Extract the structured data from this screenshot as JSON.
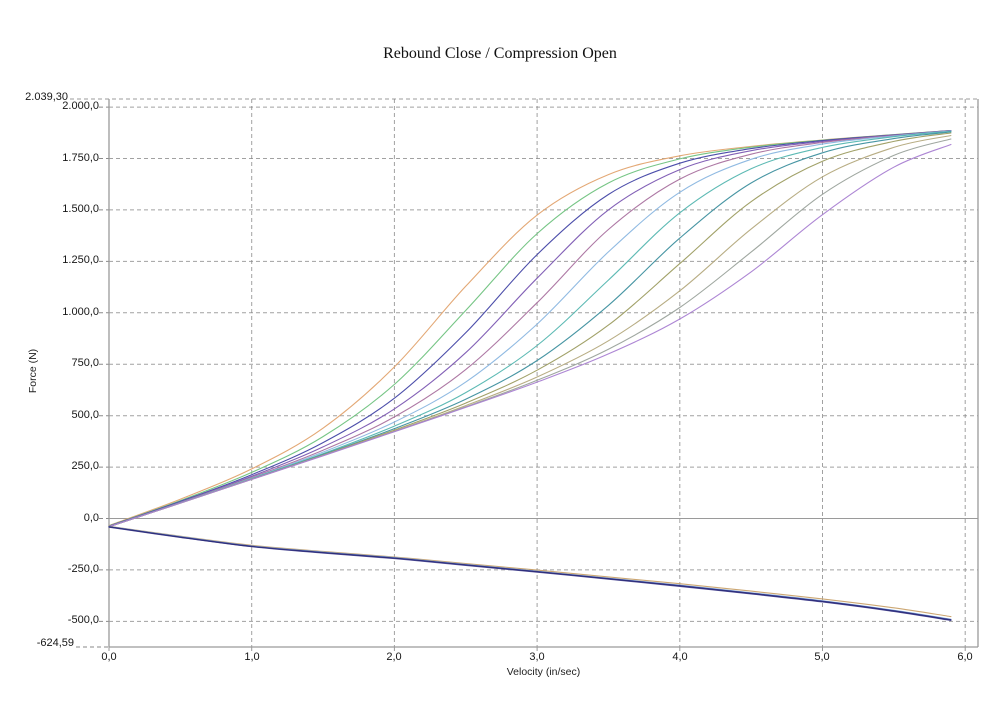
{
  "page": {
    "background": "#ffffff"
  },
  "colors": {
    "grid": "#8a8a8a",
    "axis": "#9a9a9a",
    "text": "#1c1c1c"
  },
  "chart_data": {
    "type": "line",
    "title": "Rebound Close / Compression Open",
    "xlabel": "Velocity (in/sec)",
    "ylabel": "Force (N)",
    "xlim": [
      0,
      6.09
    ],
    "ylim": [
      -624.59,
      2039.3
    ],
    "axis_max_label": "2.039,30",
    "axis_min_label": "-624,59",
    "grid": "dashed",
    "legend": "none",
    "x_ticks": [
      {
        "v": 0,
        "label": "0,0"
      },
      {
        "v": 1,
        "label": "1,0"
      },
      {
        "v": 2,
        "label": "2,0"
      },
      {
        "v": 3,
        "label": "3,0"
      },
      {
        "v": 4,
        "label": "4,0"
      },
      {
        "v": 5,
        "label": "5,0"
      },
      {
        "v": 6,
        "label": "6,0"
      }
    ],
    "y_ticks": [
      {
        "v": 2000,
        "label": "2.000,0"
      },
      {
        "v": 1750,
        "label": "1.750,0"
      },
      {
        "v": 1500,
        "label": "1.500,0"
      },
      {
        "v": 1250,
        "label": "1.250,0"
      },
      {
        "v": 1000,
        "label": "1.000,0"
      },
      {
        "v": 750,
        "label": "750,0"
      },
      {
        "v": 500,
        "label": "500,0"
      },
      {
        "v": 250,
        "label": "250,0"
      },
      {
        "v": 0,
        "label": "0,0"
      },
      {
        "v": -250,
        "label": "-250,0"
      },
      {
        "v": -500,
        "label": "-500,0"
      }
    ],
    "x": [
      0,
      0.5,
      1,
      1.5,
      2,
      2.5,
      3,
      3.5,
      4,
      4.5,
      5,
      5.5,
      5.9
    ],
    "series": [
      {
        "name": "rebound_1_orange",
        "group": "rebound",
        "color": "#e1a36e",
        "values": [
          -34,
          94,
          241,
          439,
          737,
          1129,
          1475,
          1672,
          1763,
          1809,
          1840,
          1866,
          1886
        ]
      },
      {
        "name": "rebound_2_green",
        "group": "rebound",
        "color": "#6fc27e",
        "values": [
          -36,
          87,
          224,
          398,
          652,
          1011,
          1385,
          1631,
          1748,
          1805,
          1839,
          1866,
          1886
        ]
      },
      {
        "name": "rebound_3_navy",
        "group": "rebound",
        "color": "#4245a5",
        "values": [
          -37,
          83,
          213,
          369,
          585,
          903,
          1283,
          1575,
          1727,
          1798,
          1837,
          1865,
          1886
        ]
      },
      {
        "name": "rebound_4_purple",
        "group": "rebound",
        "color": "#7b57b2",
        "values": [
          -38,
          80,
          205,
          348,
          533,
          806,
          1168,
          1500,
          1696,
          1788,
          1833,
          1864,
          1885
        ]
      },
      {
        "name": "rebound_5_plum",
        "group": "rebound",
        "color": "#a9719f",
        "values": [
          -39,
          78,
          200,
          332,
          494,
          724,
          1049,
          1405,
          1650,
          1771,
          1828,
          1862,
          1884
        ]
      },
      {
        "name": "rebound_6_skyblue",
        "group": "rebound",
        "color": "#8ab6e0",
        "values": [
          -39,
          77,
          196,
          323,
          469,
          663,
          945,
          1296,
          1586,
          1746,
          1820,
          1860,
          1884
        ]
      },
      {
        "name": "rebound_7_teal",
        "group": "rebound",
        "color": "#54b6b0",
        "values": [
          -40,
          76,
          194,
          315,
          449,
          612,
          841,
          1159,
          1486,
          1700,
          1804,
          1856,
          1882
        ]
      },
      {
        "name": "rebound_8_steelteal",
        "group": "rebound",
        "color": "#3d8f9e",
        "values": [
          -40,
          76,
          192,
          311,
          437,
          580,
          768,
          1036,
          1363,
          1631,
          1778,
          1847,
          1879
        ]
      },
      {
        "name": "rebound_9_olive",
        "group": "rebound",
        "color": "#9c9c60",
        "values": [
          -40,
          75,
          191,
          308,
          430,
          561,
          721,
          940,
          1239,
          1540,
          1737,
          1833,
          1874
        ]
      },
      {
        "name": "rebound_10_khaki",
        "group": "rebound",
        "color": "#b4a97d",
        "values": [
          -40,
          75,
          191,
          307,
          425,
          549,
          688,
          864,
          1107,
          1407,
          1661,
          1804,
          1862
        ]
      },
      {
        "name": "rebound_11_gray",
        "group": "rebound",
        "color": "#9aa29b",
        "values": [
          -40,
          75,
          190,
          306,
          423,
          543,
          672,
          823,
          1026,
          1295,
          1576,
          1765,
          1845
        ]
      },
      {
        "name": "rebound_12_violet",
        "group": "rebound",
        "color": "#a980d2",
        "values": [
          -40,
          75,
          190,
          305,
          422,
          540,
          663,
          800,
          970,
          1199,
          1477,
          1708,
          1818
        ]
      },
      {
        "name": "compression_1_tan",
        "group": "compression",
        "color": "#c9a26b",
        "values": [
          -38,
          -86,
          -130,
          -160,
          -187,
          -219,
          -251,
          -284,
          -317,
          -353,
          -391,
          -434,
          -477
        ]
      },
      {
        "name": "compression_2_skyblue",
        "group": "compression",
        "color": "#7aa8d8",
        "values": [
          -39,
          -88,
          -133,
          -163,
          -190,
          -223,
          -256,
          -290,
          -324,
          -361,
          -400,
          -446,
          -490
        ]
      },
      {
        "name": "compression_3_navy",
        "group": "compression",
        "color": "#3a3e99",
        "values": [
          -40,
          -90,
          -135,
          -165,
          -192,
          -225,
          -258,
          -292,
          -326,
          -363,
          -402,
          -448,
          -492
        ]
      },
      {
        "name": "compression_4_indigo",
        "group": "compression",
        "color": "#55519e",
        "values": [
          -42,
          -92,
          -137,
          -168,
          -195,
          -228,
          -261,
          -295,
          -330,
          -367,
          -406,
          -452,
          -496
        ]
      },
      {
        "name": "compression_5_darkblue",
        "group": "compression",
        "color": "#2d2d78",
        "values": [
          -41,
          -91,
          -136,
          -166,
          -193,
          -226,
          -259,
          -293,
          -328,
          -365,
          -404,
          -450,
          -494
        ]
      }
    ]
  }
}
